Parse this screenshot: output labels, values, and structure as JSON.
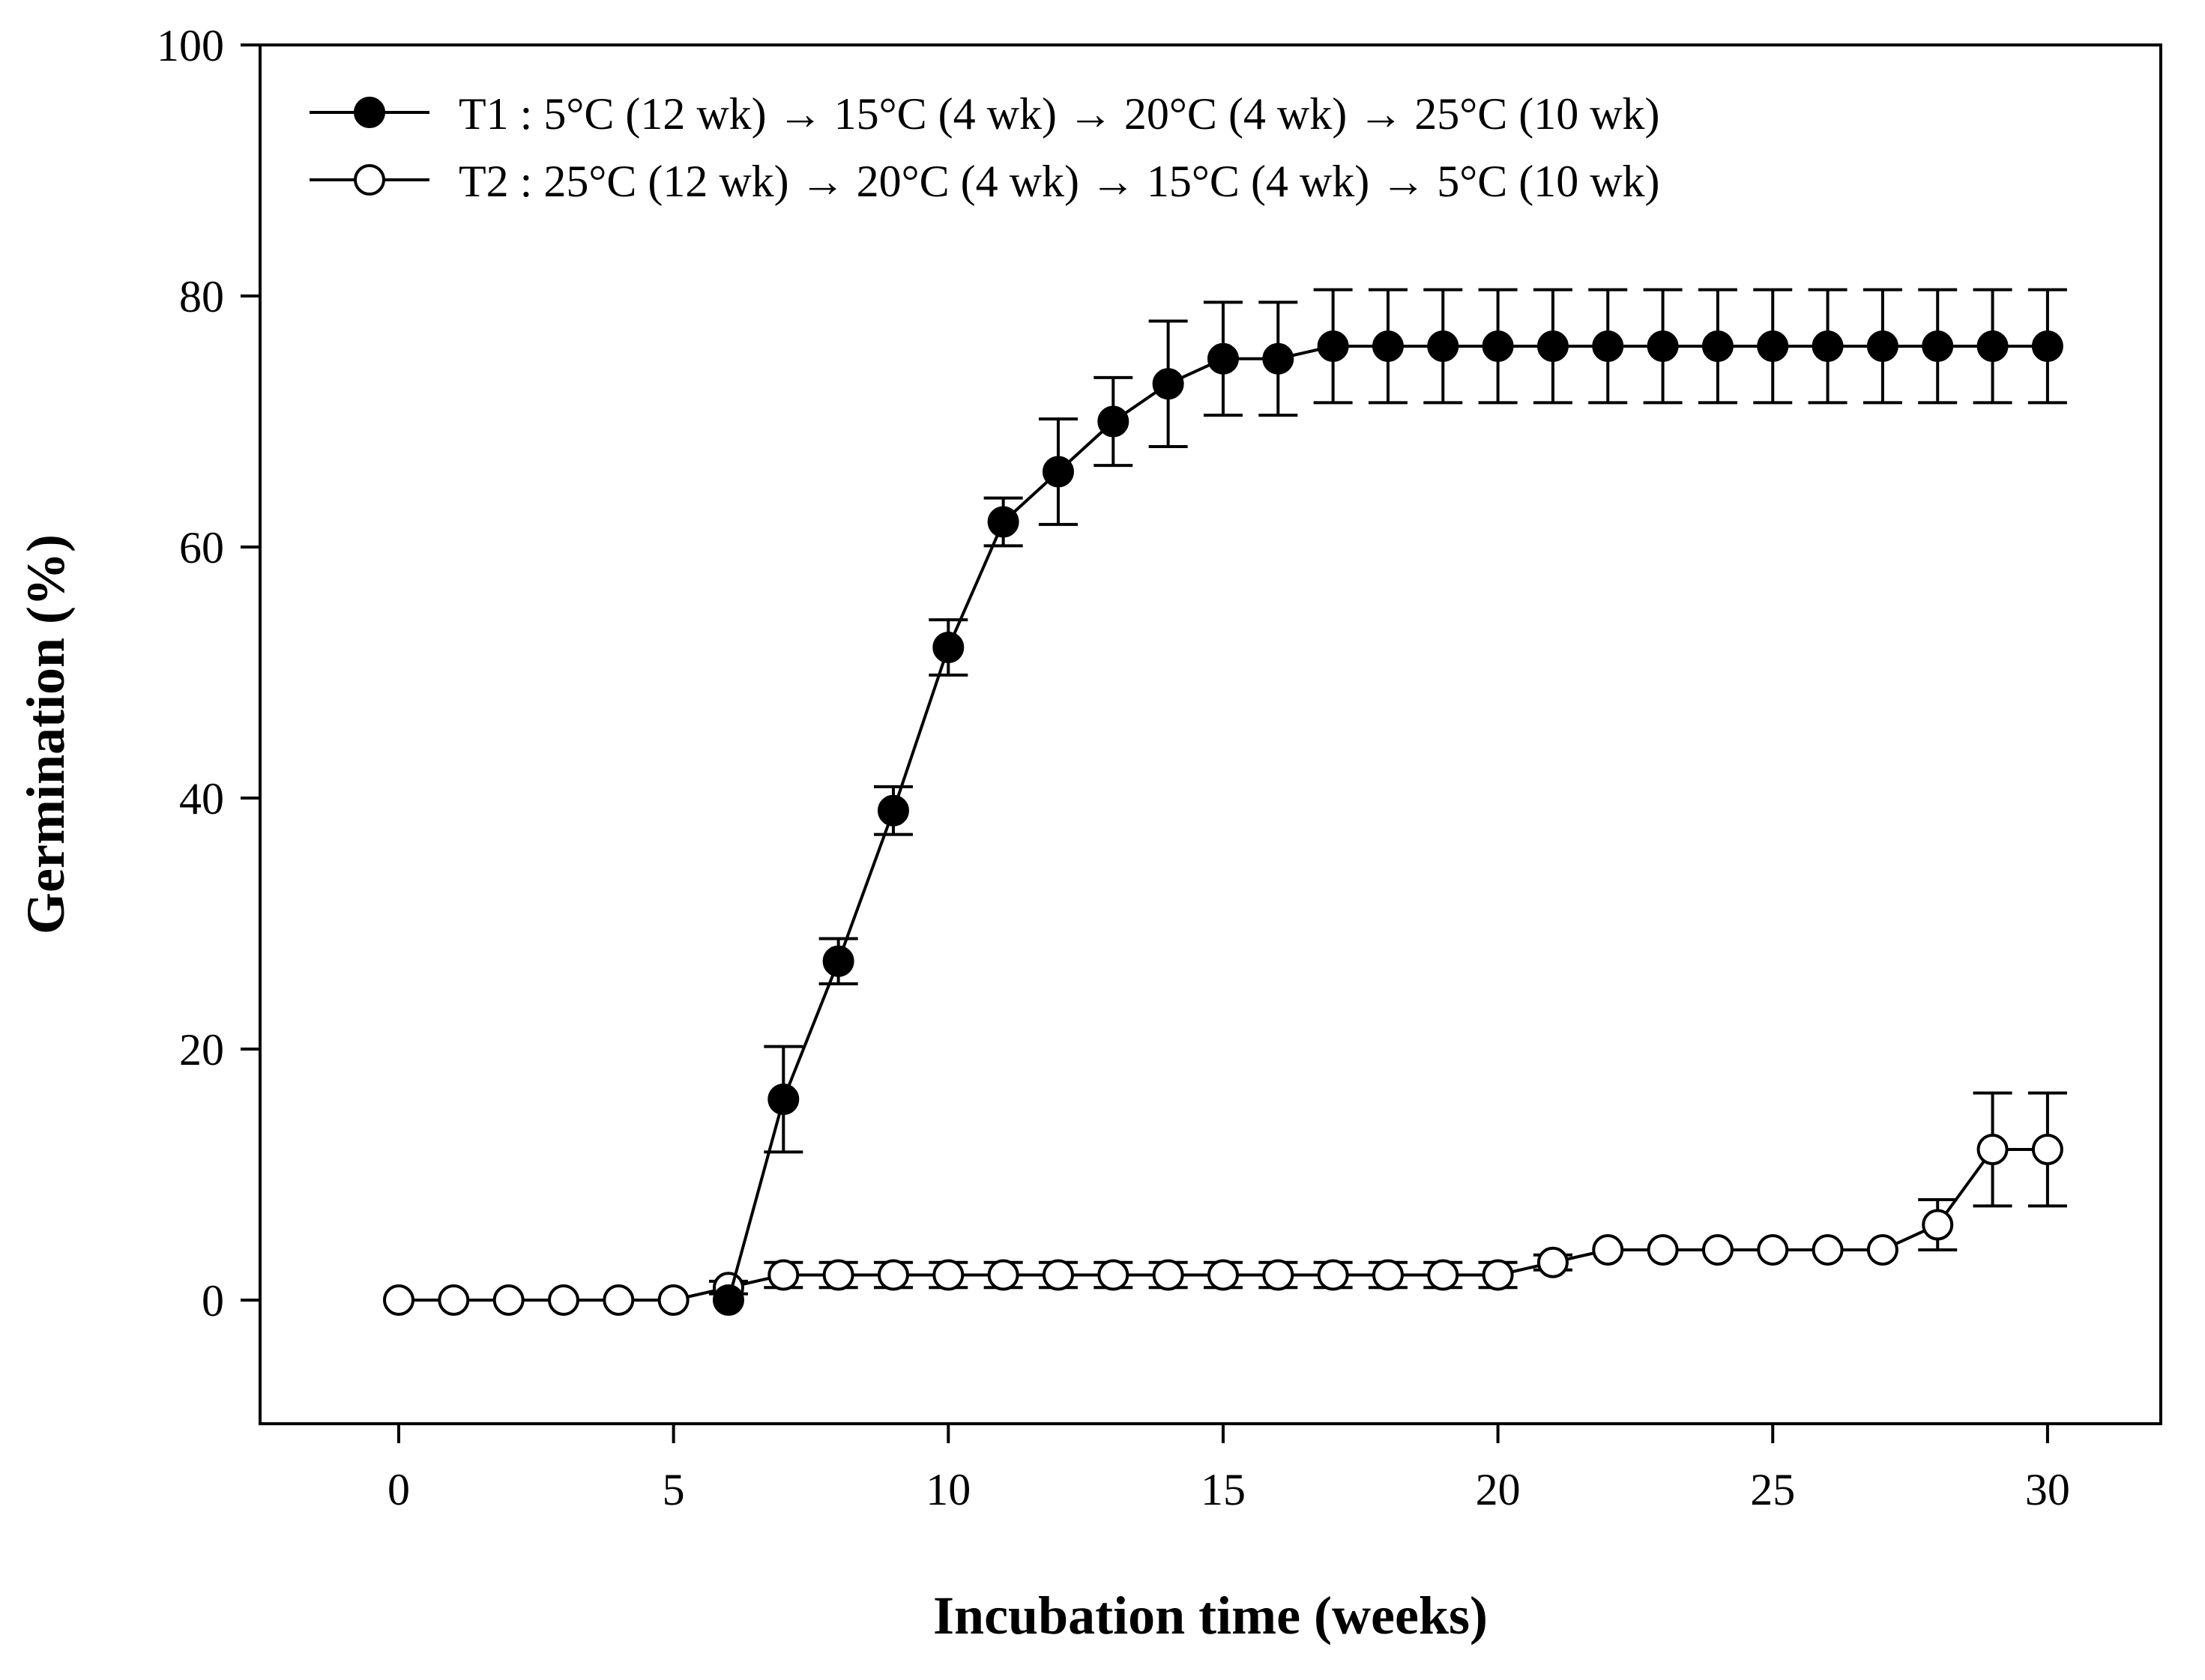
{
  "chart_data": {
    "type": "line",
    "title": "",
    "xlabel": "Incubation time (weeks)",
    "ylabel": "Germination (%)",
    "xlim": [
      -2.5,
      32
    ],
    "ylim": [
      -10,
      100
    ],
    "xticks": [
      0,
      5,
      10,
      15,
      20,
      25,
      30
    ],
    "yticks": [
      0,
      20,
      40,
      60,
      80,
      100
    ],
    "x_tick_labels": [
      "0",
      "5",
      "10",
      "15",
      "20",
      "25",
      "30"
    ],
    "y_tick_labels": [
      "0",
      "20",
      "40",
      "60",
      "80",
      "100"
    ],
    "grid": false,
    "legend_position": "top-left",
    "series": [
      {
        "name": "T1 : 5°C (12 wk) → 15°C (4 wk) → 20°C (4 wk) → 25°C (10 wk)",
        "marker": "filled-circle",
        "x": [
          6,
          7,
          8,
          9,
          10,
          11,
          12,
          13,
          14,
          15,
          16,
          17,
          18,
          19,
          20,
          21,
          22,
          23,
          24,
          25,
          26,
          27,
          28,
          29,
          30
        ],
        "y": [
          0,
          16,
          27,
          39,
          52,
          62,
          66,
          70,
          73,
          75,
          75,
          76,
          76,
          76,
          76,
          76,
          76,
          76,
          76,
          76,
          76,
          76,
          76,
          76,
          76
        ],
        "err": [
          0,
          4.2,
          1.8,
          1.9,
          2.2,
          1.9,
          4.2,
          3.5,
          5,
          4.5,
          4.5,
          4.5,
          4.5,
          4.5,
          4.5,
          4.5,
          4.5,
          4.5,
          4.5,
          4.5,
          4.5,
          4.5,
          4.5,
          4.5,
          4.5
        ]
      },
      {
        "name": "T2 : 25°C (12 wk) → 20°C (4 wk) → 15°C (4 wk) → 5°C (10 wk)",
        "marker": "open-circle",
        "x": [
          0,
          1,
          2,
          3,
          4,
          5,
          6,
          7,
          8,
          9,
          10,
          11,
          12,
          13,
          14,
          15,
          16,
          17,
          18,
          19,
          20,
          21,
          22,
          23,
          24,
          25,
          26,
          27,
          28,
          29,
          30
        ],
        "y": [
          0,
          0,
          0,
          0,
          0,
          0,
          1,
          2,
          2,
          2,
          2,
          2,
          2,
          2,
          2,
          2,
          2,
          2,
          2,
          2,
          2,
          3,
          4,
          4,
          4,
          4,
          4,
          4,
          6,
          12,
          12
        ],
        "err": [
          0,
          0,
          0,
          0,
          0,
          0,
          0.5,
          1,
          1,
          1,
          1,
          1,
          1,
          1,
          1,
          1,
          1,
          1,
          1,
          1,
          1,
          0.6,
          0,
          0,
          0,
          0,
          0,
          0,
          2,
          4.5,
          4.5
        ]
      }
    ]
  }
}
